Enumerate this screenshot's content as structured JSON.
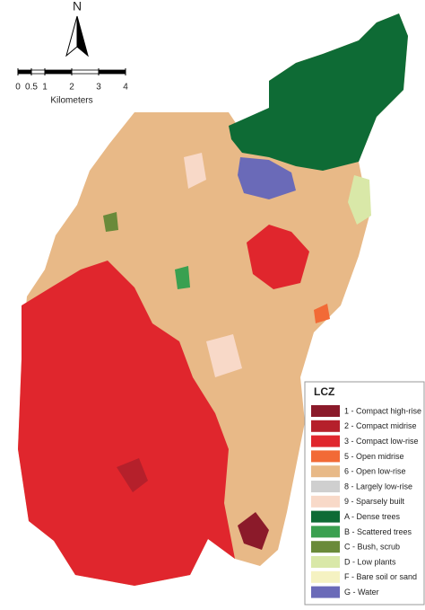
{
  "north_arrow": {
    "label": "N"
  },
  "scale_bar": {
    "ticks": [
      0,
      0.5,
      1,
      2,
      3,
      4
    ],
    "unit": "Kilometers"
  },
  "legend": {
    "title": "LCZ",
    "items": [
      {
        "label": "1 - Compact high-rise",
        "color": "#8b1a2a"
      },
      {
        "label": "2 - Compact midrise",
        "color": "#b5202b"
      },
      {
        "label": "3 - Compact low-rise",
        "color": "#e0262d"
      },
      {
        "label": "5 - Open midrise",
        "color": "#f26a36"
      },
      {
        "label": "6 - Open low-rise",
        "color": "#e8b987"
      },
      {
        "label": "8 - Largely low-rise",
        "color": "#cfcfcf"
      },
      {
        "label": "9 - Sparsely built",
        "color": "#f8d9c8"
      },
      {
        "label": "A - Dense trees",
        "color": "#0e6b35"
      },
      {
        "label": "B - Scattered trees",
        "color": "#3aa050"
      },
      {
        "label": "C - Bush, scrub",
        "color": "#6a8a3a"
      },
      {
        "label": "D - Low plants",
        "color": "#d9e8a8"
      },
      {
        "label": "F - Bare soil or sand",
        "color": "#f5f2c2"
      },
      {
        "label": "G - Water",
        "color": "#6a6ab8"
      }
    ]
  }
}
